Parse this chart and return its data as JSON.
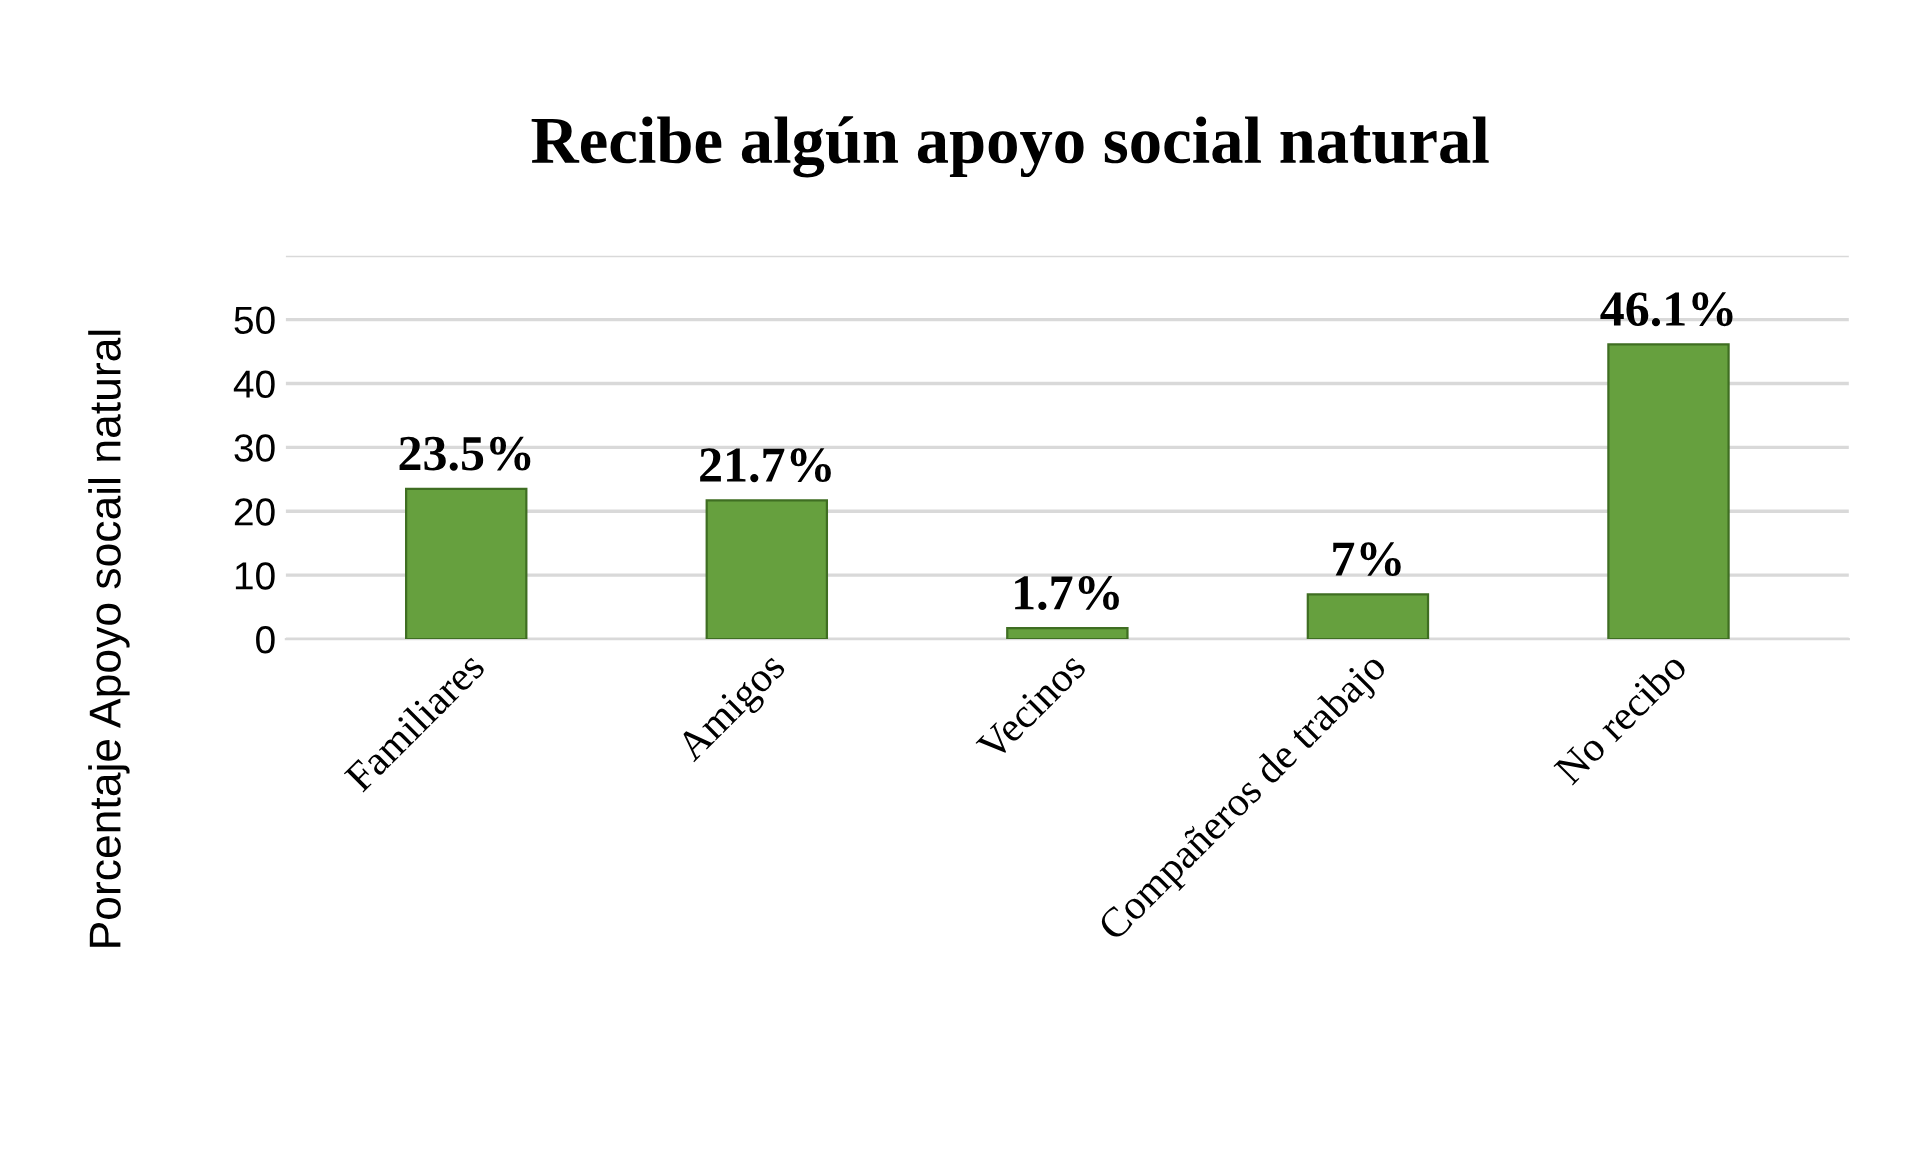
{
  "chart_data": {
    "type": "bar",
    "title": "Recibe algún apoyo social natural",
    "ylabel": "Porcentaje Apoyo socail natural",
    "categories": [
      "Familiares",
      "Amigos",
      "Vecinos",
      "Compañeros de trabajo",
      "No recibo"
    ],
    "values": [
      23.5,
      21.7,
      1.7,
      7,
      46.1
    ],
    "value_labels": [
      "23.5%",
      "21.7%",
      "1.7%",
      "7%",
      "46.1%"
    ],
    "color": "#66a03e",
    "ylim": [
      0,
      60
    ],
    "yticks": [
      0,
      10,
      20,
      30,
      40,
      50,
      {
        "value": 60,
        "label": null
      }
    ],
    "grid": "y"
  }
}
